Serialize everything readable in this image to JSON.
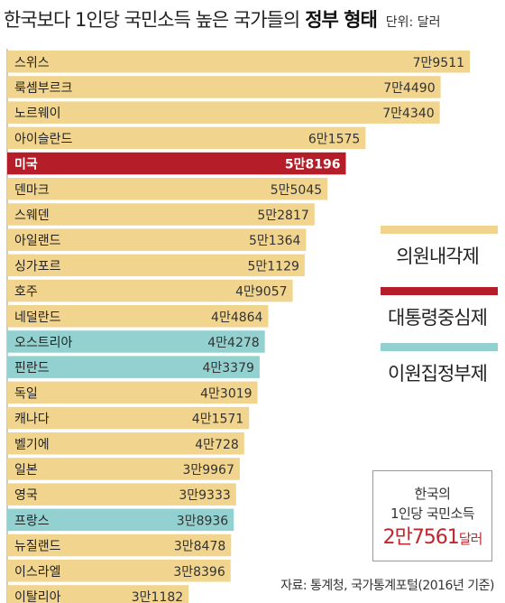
{
  "header": {
    "title_main": "한국보다 1인당 국민소득 높은 국가들의",
    "title_bold": "정부 형태",
    "unit": "단위: 달러"
  },
  "colors": {
    "parliamentary": "#f1d48d",
    "presidential": "#b51e28",
    "semi_presidential": "#92d1cf",
    "value_text_normal": "#333333",
    "value_text_highlight": "#ffffff"
  },
  "legend": {
    "items": [
      {
        "label": "의원내각제",
        "color": "#f1d48d"
      },
      {
        "label": "대통령중심제",
        "color": "#b51e28"
      },
      {
        "label": "이원집정부제",
        "color": "#92d1cf"
      }
    ]
  },
  "info_box": {
    "line1": "한국의",
    "line2": "1인당 국민소득",
    "value": "2만7561",
    "unit": "달러"
  },
  "source": "자료: 통계청, 국가통계포털(2016년 기준)",
  "chart_data": {
    "type": "bar",
    "orientation": "horizontal",
    "value_unit": "달러",
    "categories": [
      "스위스",
      "룩셈부르크",
      "노르웨이",
      "아이슬란드",
      "미국",
      "덴마크",
      "스웨덴",
      "아일랜드",
      "싱가포르",
      "호주",
      "네덜란드",
      "오스트리아",
      "핀란드",
      "독일",
      "캐나다",
      "벨기에",
      "일본",
      "영국",
      "프랑스",
      "뉴질랜드",
      "이스라엘",
      "이탈리아"
    ],
    "values": [
      79511,
      74490,
      74340,
      61575,
      58196,
      55045,
      52817,
      51364,
      51129,
      49057,
      44864,
      44278,
      43379,
      43019,
      41571,
      40728,
      39967,
      39333,
      38936,
      38478,
      38396,
      31182
    ],
    "value_labels": [
      "7만9511",
      "7만4490",
      "7만4340",
      "6만1575",
      "5만8196",
      "5만5045",
      "5만2817",
      "5만1364",
      "5만1129",
      "4만9057",
      "4만4864",
      "4만4278",
      "4만3379",
      "4만3019",
      "4만1571",
      "4만728",
      "3만9967",
      "3만9333",
      "3만8936",
      "3만8478",
      "3만8396",
      "3만1182"
    ],
    "government": [
      "parliamentary",
      "parliamentary",
      "parliamentary",
      "parliamentary",
      "presidential",
      "parliamentary",
      "parliamentary",
      "parliamentary",
      "parliamentary",
      "parliamentary",
      "parliamentary",
      "semi_presidential",
      "semi_presidential",
      "parliamentary",
      "parliamentary",
      "parliamentary",
      "parliamentary",
      "parliamentary",
      "semi_presidential",
      "parliamentary",
      "parliamentary",
      "parliamentary"
    ],
    "xlim": [
      0,
      84000
    ],
    "grid": false
  }
}
